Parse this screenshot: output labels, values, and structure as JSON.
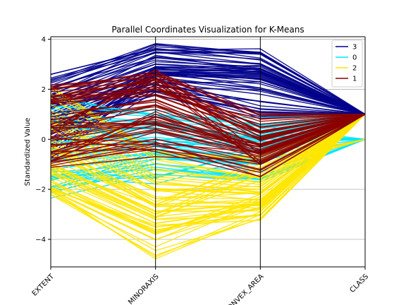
{
  "chart_data": {
    "type": "parallel-coordinates",
    "title": "Parallel Coordinates Visualization for K-Means",
    "xlabel": "",
    "ylabel": "Standardized Value",
    "axes": [
      "EXTENT",
      "MINORAXIS",
      "CONVEX_AREA",
      "CLASS"
    ],
    "ylim": [
      -5.1,
      4.1
    ],
    "yticks": [
      4,
      2,
      0,
      -2,
      -4
    ],
    "grid": true,
    "legend_position": "top-right",
    "series": [
      {
        "name": "3",
        "color": "#00008b",
        "lines": [
          [
            2.6,
            3.6,
            3.4,
            1.0
          ],
          [
            2.3,
            3.7,
            3.45,
            1.0
          ],
          [
            2.0,
            3.5,
            3.2,
            1.0
          ],
          [
            1.8,
            3.3,
            3.0,
            1.0
          ],
          [
            1.5,
            3.1,
            2.9,
            1.0
          ],
          [
            1.2,
            2.9,
            2.8,
            1.0
          ],
          [
            0.8,
            2.8,
            2.7,
            1.0
          ],
          [
            0.4,
            2.7,
            2.6,
            1.0
          ],
          [
            -0.1,
            2.6,
            2.5,
            1.0
          ],
          [
            -0.6,
            2.7,
            2.3,
            1.0
          ],
          [
            1.0,
            2.5,
            2.0,
            1.0
          ],
          [
            0.2,
            2.3,
            1.8,
            1.0
          ],
          [
            -0.4,
            2.2,
            1.5,
            1.0
          ],
          [
            1.4,
            2.2,
            1.2,
            1.0
          ],
          [
            0.6,
            2.0,
            0.9,
            1.0
          ]
        ]
      },
      {
        "name": "0",
        "color": "#00e5ff",
        "lines": [
          [
            1.6,
            1.0,
            0.6,
            1.0
          ],
          [
            1.2,
            0.9,
            0.3,
            0.0
          ],
          [
            0.5,
            0.7,
            0.0,
            1.0
          ],
          [
            0.0,
            0.3,
            -0.2,
            0.0
          ],
          [
            -0.4,
            0.0,
            -0.5,
            1.0
          ],
          [
            -0.8,
            -0.3,
            -0.8,
            0.0
          ],
          [
            -1.2,
            -0.7,
            -1.0,
            1.0
          ],
          [
            -1.6,
            -1.0,
            -1.3,
            0.0
          ],
          [
            -1.9,
            -0.6,
            -0.9,
            1.0
          ],
          [
            -2.1,
            -1.2,
            -1.6,
            0.0
          ],
          [
            -1.4,
            -1.5,
            -0.4,
            1.0
          ],
          [
            0.9,
            -0.2,
            0.2,
            1.0
          ]
        ]
      },
      {
        "name": "2",
        "color": "#ffe600",
        "lines": [
          [
            2.1,
            -0.5,
            -0.8,
            1.0
          ],
          [
            1.4,
            -1.0,
            -1.5,
            1.0
          ],
          [
            0.9,
            -1.5,
            -1.8,
            1.0
          ],
          [
            0.4,
            -1.8,
            -2.0,
            1.0
          ],
          [
            0.0,
            -2.0,
            -2.2,
            1.0
          ],
          [
            -0.4,
            -2.3,
            -2.4,
            1.0
          ],
          [
            -0.8,
            -2.6,
            -2.5,
            1.0
          ],
          [
            -1.1,
            -2.9,
            -2.6,
            1.0
          ],
          [
            -1.4,
            -3.2,
            -2.8,
            1.0
          ],
          [
            -1.7,
            -3.5,
            -3.0,
            1.0
          ],
          [
            -2.0,
            -4.0,
            -2.7,
            1.0
          ],
          [
            -2.1,
            -4.7,
            -2.9,
            1.0
          ],
          [
            -1.9,
            -3.8,
            -2.2,
            1.0
          ],
          [
            -1.0,
            -3.0,
            -1.4,
            1.0
          ],
          [
            -0.2,
            -2.5,
            -1.0,
            0.0
          ]
        ]
      },
      {
        "name": "1",
        "color": "#8b0000",
        "lines": [
          [
            2.0,
            2.7,
            0.8,
            1.0
          ],
          [
            1.7,
            2.4,
            0.5,
            1.0
          ],
          [
            1.3,
            2.0,
            0.3,
            1.0
          ],
          [
            0.9,
            1.6,
            0.0,
            1.0
          ],
          [
            0.5,
            1.2,
            -0.2,
            1.0
          ],
          [
            0.1,
            0.8,
            -0.4,
            1.0
          ],
          [
            -0.3,
            0.4,
            -0.6,
            1.0
          ],
          [
            -0.6,
            0.0,
            -0.8,
            1.0
          ],
          [
            -0.9,
            -0.4,
            -1.0,
            1.0
          ],
          [
            -0.2,
            -0.2,
            -1.2,
            1.0
          ],
          [
            0.7,
            0.6,
            -0.3,
            1.0
          ],
          [
            1.5,
            1.9,
            0.6,
            1.0
          ],
          [
            1.9,
            2.2,
            0.1,
            1.0
          ],
          [
            -0.7,
            1.0,
            -0.5,
            1.0
          ],
          [
            0.3,
            2.6,
            -0.9,
            1.0
          ]
        ]
      }
    ],
    "legend_order": [
      "3",
      "0",
      "2",
      "1"
    ]
  }
}
